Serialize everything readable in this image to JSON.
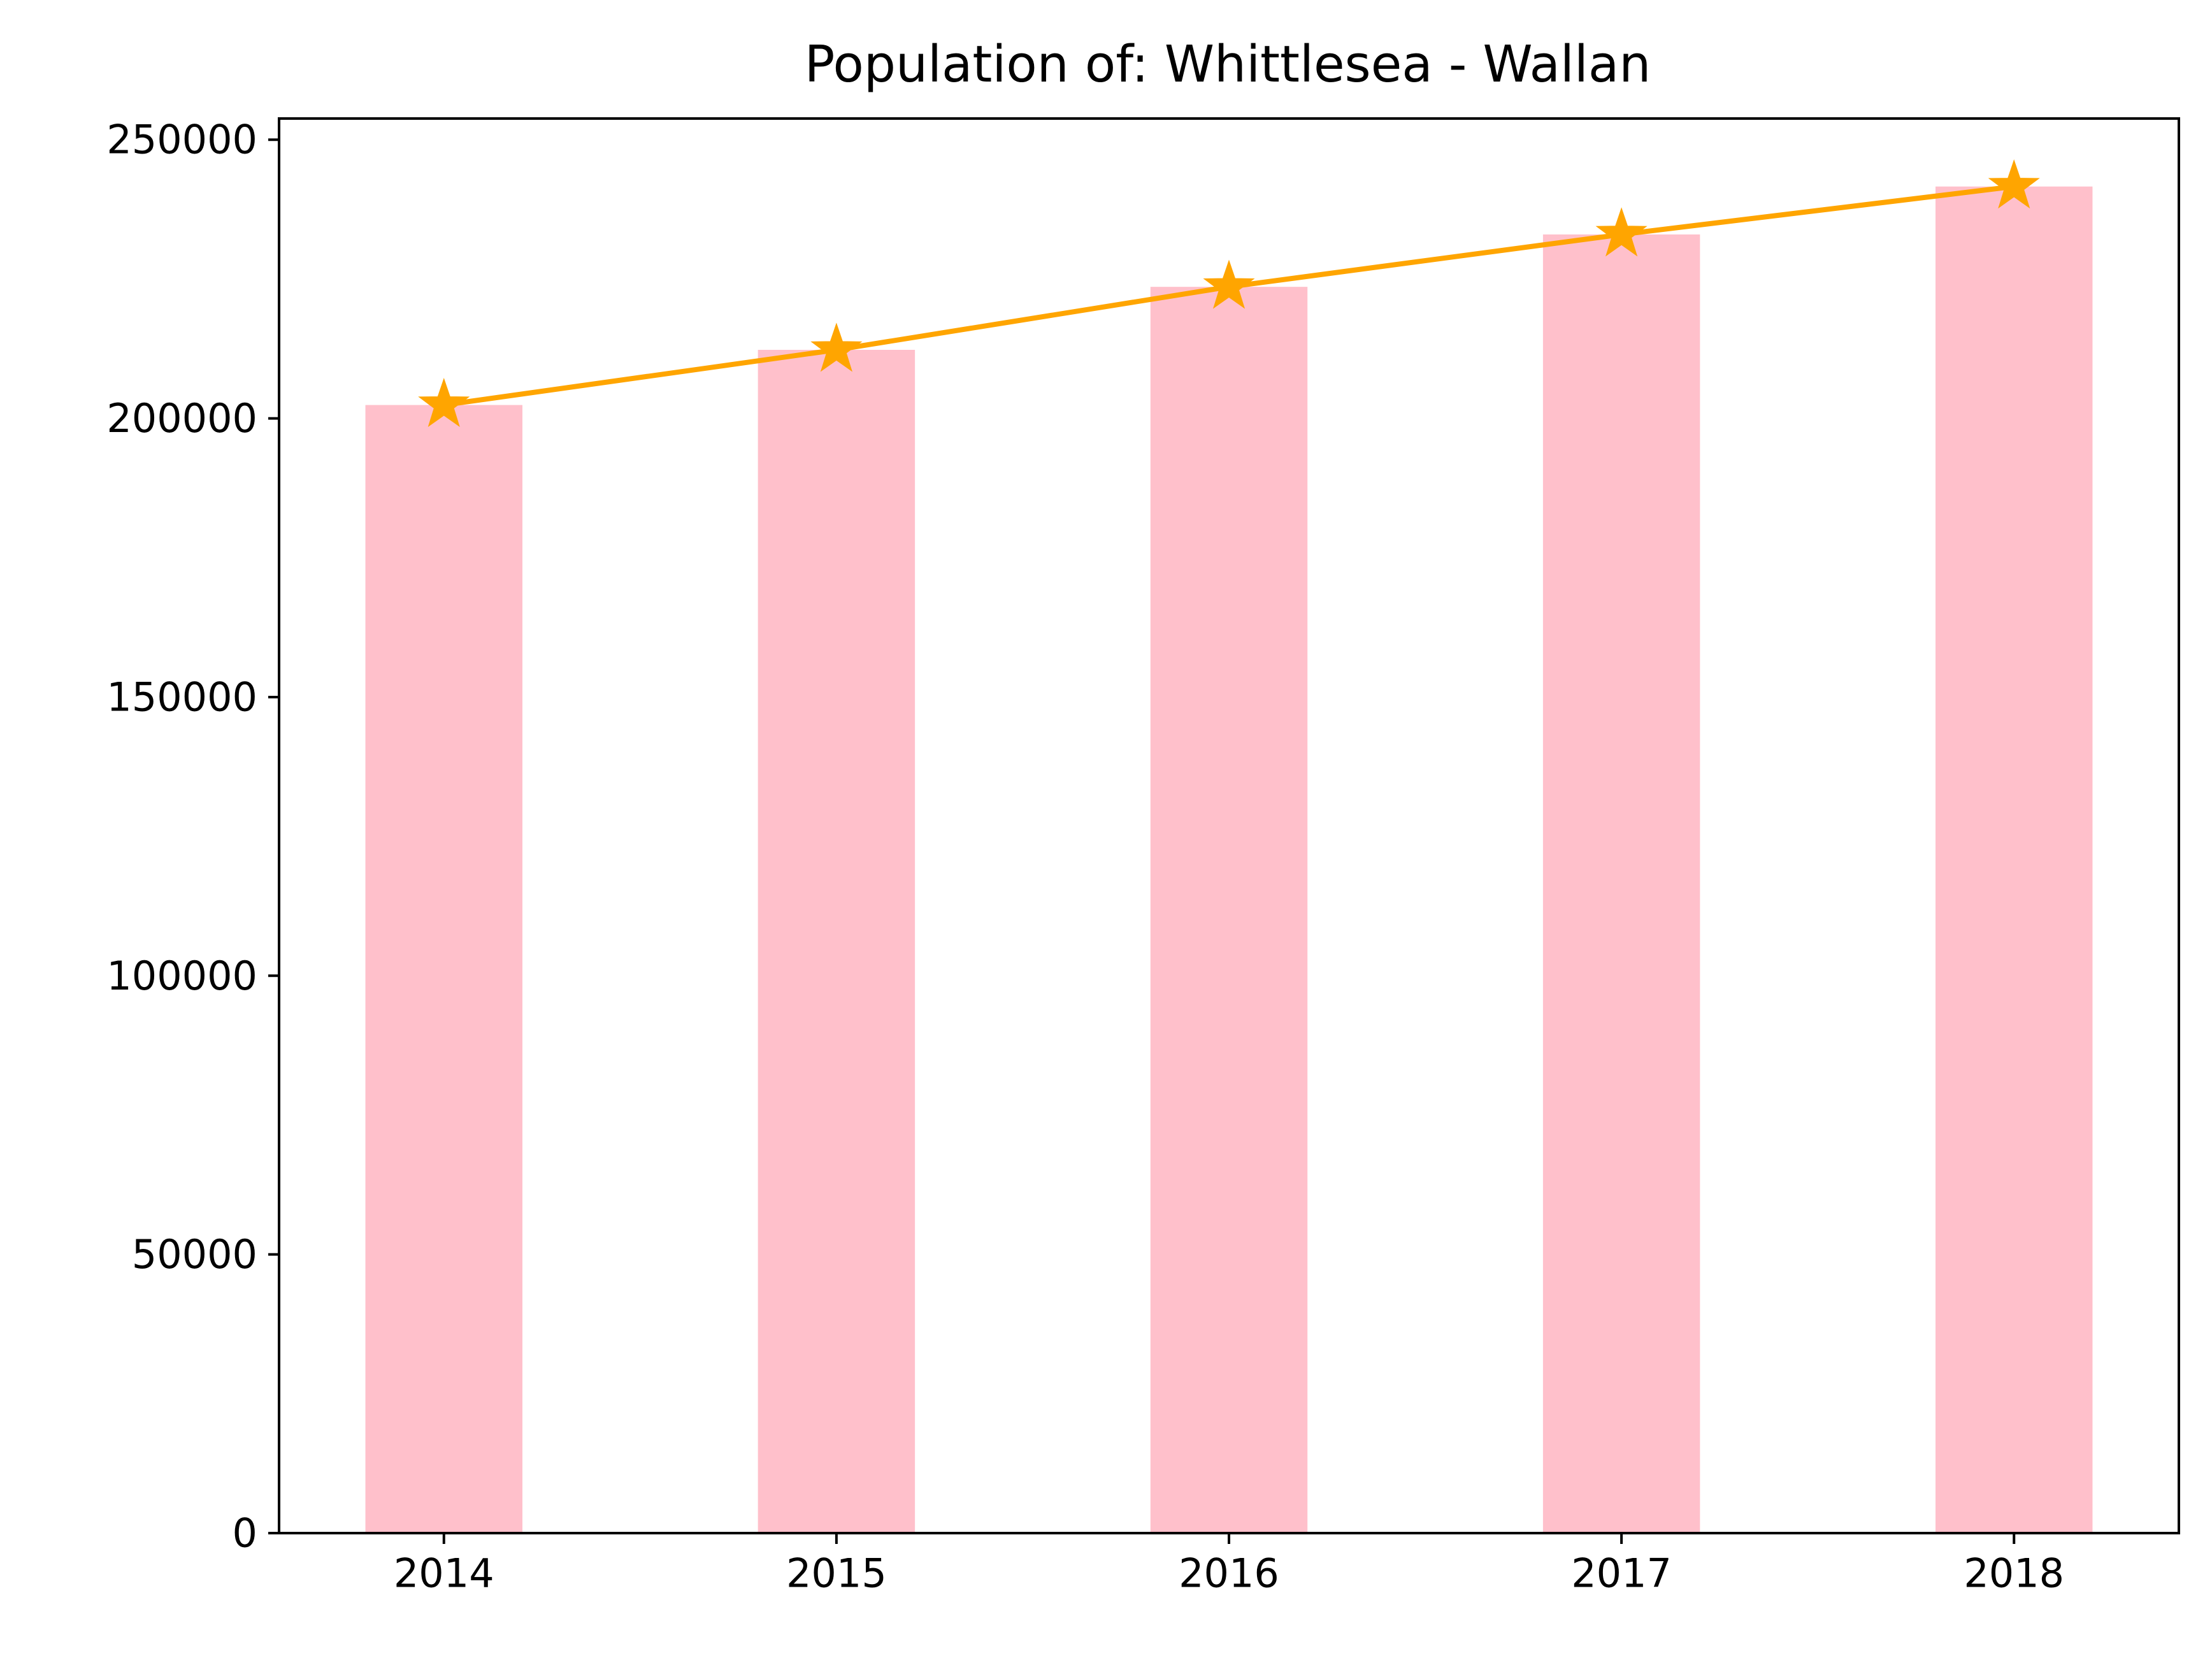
{
  "chart_data": {
    "type": "bar",
    "title": "Population of: Whittlesea - Wallan",
    "xlabel": "",
    "ylabel": "",
    "categories": [
      "2014",
      "2015",
      "2016",
      "2017",
      "2018"
    ],
    "series": [
      {
        "type": "bar",
        "values": [
          202400,
          212300,
          223600,
          233000,
          241600
        ],
        "color": "#ffc0cb"
      },
      {
        "type": "line",
        "marker": "star",
        "values": [
          202400,
          212300,
          223600,
          233000,
          241600
        ],
        "color": "#ffa500"
      }
    ],
    "ylim": [
      0,
      253800
    ],
    "yticks": [
      0,
      50000,
      100000,
      150000,
      200000,
      250000
    ],
    "ytick_labels": [
      "0",
      "50000",
      "100000",
      "150000",
      "200000",
      "250000"
    ],
    "grid": false,
    "legend": "none"
  }
}
